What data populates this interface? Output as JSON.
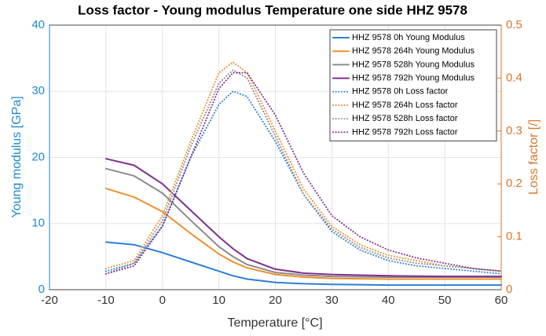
{
  "chart_data": {
    "type": "line",
    "title": "Loss factor - Young modulus Temperature one side HHZ 9578",
    "x_label": "Temperature [°C]",
    "y_label": "Young modulus [GPa]",
    "y2_label": "Loss factor [/]",
    "x": [
      -10,
      -5,
      0,
      5,
      10,
      12.5,
      15,
      20,
      25,
      30,
      35,
      40,
      45,
      50,
      55,
      60
    ],
    "xlim": [
      -20,
      60
    ],
    "xticks": [
      -20,
      -10,
      0,
      10,
      20,
      30,
      40,
      50,
      60
    ],
    "ylim": [
      0,
      40
    ],
    "yticks": [
      0,
      10,
      20,
      30,
      40
    ],
    "y2lim": [
      0,
      0.5
    ],
    "y2ticks": [
      0,
      0.1,
      0.2,
      0.3,
      0.4,
      0.5
    ],
    "grid": true,
    "legend": "upper right",
    "y_color": "#1f8ad0",
    "y2_color": "#d9762a",
    "series": [
      {
        "name": "HHZ 9578 0h Young Modulus",
        "color": "#2c7fd6",
        "style": "solid",
        "values": [
          7.2,
          6.8,
          5.6,
          4.2,
          2.8,
          2.1,
          1.6,
          1.1,
          0.9,
          0.8,
          0.75,
          0.7,
          0.7,
          0.7,
          0.7,
          0.7
        ]
      },
      {
        "name": "HHZ 9578 264h Young Modulus",
        "color": "#ee8f2e",
        "style": "solid",
        "values": [
          15.3,
          14,
          11.8,
          8.5,
          5.4,
          4.2,
          3.3,
          2.3,
          1.9,
          1.7,
          1.65,
          1.6,
          1.6,
          1.6,
          1.6,
          1.6
        ]
      },
      {
        "name": "HHZ 9578 528h Young Modulus",
        "color": "#8c8c8c",
        "style": "solid",
        "values": [
          18.3,
          17.2,
          14.6,
          10.5,
          6.5,
          5,
          3.8,
          2.6,
          2.2,
          2.0,
          1.95,
          1.9,
          1.9,
          1.9,
          1.9,
          1.9
        ]
      },
      {
        "name": "HHZ 9578 792h Young Modulus",
        "color": "#7e2f8e",
        "style": "solid",
        "values": [
          19.8,
          18.8,
          16,
          12,
          8,
          6.2,
          4.7,
          3.1,
          2.5,
          2.3,
          2.2,
          2.1,
          2.05,
          2.0,
          2.0,
          2.0
        ]
      },
      {
        "name": "HHZ 9578 0h Loss factor",
        "color": "#2c7fd6",
        "style": "dotted",
        "axis": "y2",
        "values": [
          0.035,
          0.05,
          0.12,
          0.25,
          0.35,
          0.375,
          0.365,
          0.28,
          0.18,
          0.11,
          0.075,
          0.055,
          0.045,
          0.04,
          0.035,
          0.03
        ]
      },
      {
        "name": "HHZ 9578 264h Loss factor",
        "color": "#ee8f2e",
        "style": "dotted",
        "axis": "y2",
        "values": [
          0.04,
          0.055,
          0.14,
          0.28,
          0.41,
          0.43,
          0.41,
          0.3,
          0.19,
          0.12,
          0.085,
          0.065,
          0.055,
          0.045,
          0.04,
          0.035
        ]
      },
      {
        "name": "HHZ 9578 528h Loss factor",
        "color": "#8c8c8c",
        "style": "dotted",
        "axis": "y2",
        "values": [
          0.03,
          0.05,
          0.13,
          0.27,
          0.39,
          0.415,
          0.4,
          0.29,
          0.18,
          0.115,
          0.08,
          0.06,
          0.05,
          0.045,
          0.04,
          0.035
        ]
      },
      {
        "name": "HHZ 9578 792h Loss factor",
        "color": "#7e2f8e",
        "style": "dotted",
        "axis": "y2",
        "values": [
          0.03,
          0.045,
          0.12,
          0.25,
          0.38,
          0.41,
          0.41,
          0.33,
          0.22,
          0.14,
          0.1,
          0.075,
          0.06,
          0.05,
          0.04,
          0.035
        ]
      }
    ]
  }
}
